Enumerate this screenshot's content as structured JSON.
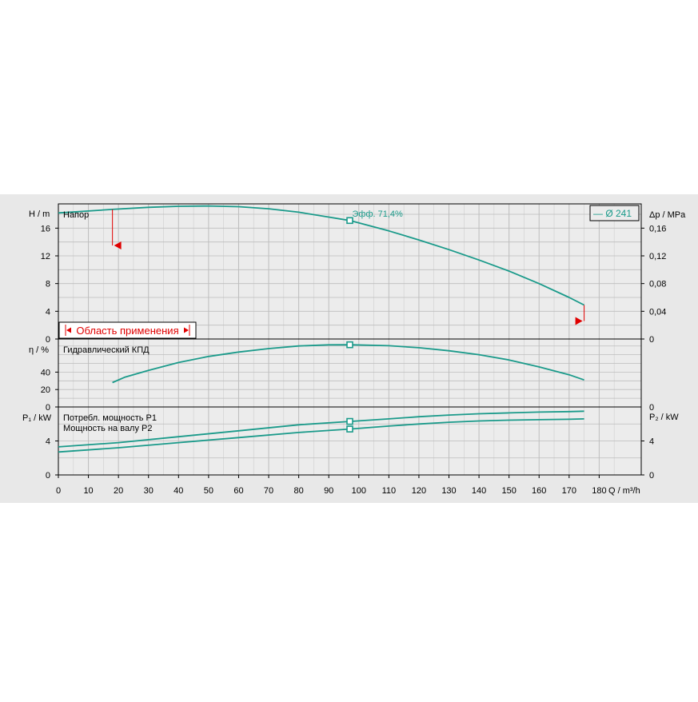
{
  "chart_data": [
    {
      "type": "line",
      "panel": "head",
      "label": "Напор",
      "y_axis_label": "H / m",
      "y_axis_right_label": "Δp / MPa",
      "ylim": [
        0,
        19.5
      ],
      "y_ticks": [
        0,
        4,
        8,
        12,
        16
      ],
      "y_right_ticks": [
        "0",
        "0,04",
        "0,08",
        "0,12",
        "0,16"
      ],
      "legend": "— Ø 241",
      "annotation": "Эфф.  71,4%",
      "operating_point": {
        "x": 97,
        "y": 17.1
      },
      "range_label": "Область применения",
      "range": [
        18,
        175
      ],
      "series": [
        {
          "name": "Ø 241",
          "x": [
            0,
            18,
            30,
            40,
            50,
            60,
            70,
            80,
            90,
            97,
            110,
            120,
            130,
            140,
            150,
            160,
            170,
            175
          ],
          "y": [
            18.2,
            18.7,
            19.0,
            19.15,
            19.2,
            19.1,
            18.8,
            18.3,
            17.6,
            17.1,
            15.6,
            14.3,
            12.9,
            11.4,
            9.8,
            8.0,
            6.0,
            4.9
          ]
        }
      ]
    },
    {
      "type": "line",
      "panel": "efficiency",
      "label": "Гидравлический КПД",
      "y_axis_label": "η / %",
      "ylim": [
        0,
        78
      ],
      "y_ticks": [
        0,
        20,
        40
      ],
      "operating_point": {
        "x": 97,
        "y": 71.4
      },
      "series": [
        {
          "name": "Гидравлический КПД",
          "x": [
            18,
            22,
            30,
            40,
            50,
            60,
            70,
            80,
            90,
            97,
            110,
            120,
            130,
            140,
            150,
            160,
            170,
            175
          ],
          "y": [
            28,
            34,
            42,
            51,
            58,
            63,
            67,
            70,
            71.3,
            71.4,
            70.3,
            68,
            64.5,
            60,
            54,
            46,
            37,
            31
          ]
        }
      ]
    },
    {
      "type": "line",
      "panel": "power",
      "label_p1": "Потребл. мощность P1",
      "label_p2": "Мощность на валу P2",
      "y_axis_label": "P₁ / kW",
      "y_axis_right_label": "P₂ / kW",
      "ylim": [
        0,
        8
      ],
      "y_ticks": [
        0,
        4
      ],
      "y_right_ticks": [
        "0",
        "4"
      ],
      "xlabel": "Q / m³/h",
      "xlim": [
        0,
        194
      ],
      "x_ticks": [
        0,
        10,
        20,
        30,
        40,
        50,
        60,
        70,
        80,
        90,
        100,
        110,
        120,
        130,
        140,
        150,
        160,
        170,
        180
      ],
      "operating_points": [
        {
          "x": 97,
          "y": 6.3
        },
        {
          "x": 97,
          "y": 5.4
        }
      ],
      "series": [
        {
          "name": "P1",
          "x": [
            0,
            20,
            40,
            60,
            80,
            97,
            110,
            120,
            130,
            140,
            150,
            160,
            170,
            175
          ],
          "y": [
            3.3,
            3.8,
            4.5,
            5.2,
            5.9,
            6.3,
            6.6,
            6.85,
            7.05,
            7.2,
            7.3,
            7.4,
            7.45,
            7.5
          ]
        },
        {
          "name": "P2",
          "x": [
            0,
            20,
            40,
            60,
            80,
            97,
            110,
            120,
            130,
            140,
            150,
            160,
            170,
            175
          ],
          "y": [
            2.7,
            3.2,
            3.8,
            4.4,
            5.0,
            5.4,
            5.75,
            6.0,
            6.2,
            6.35,
            6.45,
            6.5,
            6.55,
            6.6
          ]
        }
      ]
    }
  ],
  "colors": {
    "curve": "#1a9a8a",
    "marker": "#e00000",
    "grid": "#bdbdbd",
    "panel_bg": "#e8e8e8"
  }
}
